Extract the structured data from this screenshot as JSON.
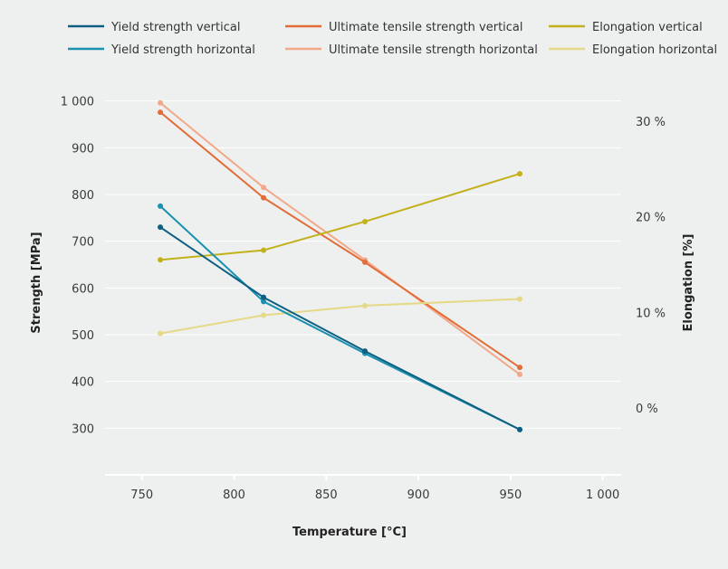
{
  "chart_data": {
    "type": "line",
    "xlabel": "Temperature [°C]",
    "ylabel": "Strength [MPa]",
    "y2label": "Elongation [%]",
    "xlim": [
      730,
      1010
    ],
    "ylim": [
      200,
      1100
    ],
    "y2lim": [
      -7,
      37
    ],
    "x_ticks": [
      750,
      800,
      850,
      900,
      950,
      1000
    ],
    "x_tick_labels": [
      "750",
      "800",
      "850",
      "900",
      "950",
      "1 000"
    ],
    "y_ticks": [
      300,
      400,
      500,
      600,
      700,
      800,
      900,
      1000
    ],
    "y_tick_labels": [
      "300",
      "400",
      "500",
      "600",
      "700",
      "800",
      "900",
      "1 000"
    ],
    "y2_ticks": [
      0,
      10,
      20,
      30
    ],
    "y2_tick_labels": [
      "0 %",
      "10 %",
      "20 %",
      "30 %"
    ],
    "grid": true,
    "legend_position": "top",
    "x": [
      760,
      816,
      871,
      955
    ],
    "series": [
      {
        "name": "Yield strength vertical",
        "axis": "left",
        "color": "#0e5f82",
        "values": [
          730,
          580,
          465,
          297
        ]
      },
      {
        "name": "Ultimate tensile strength vertical",
        "axis": "left",
        "color": "#e36d38",
        "values": [
          976,
          793,
          655,
          430
        ]
      },
      {
        "name": "Elongation vertical",
        "axis": "right",
        "color": "#c2b11a",
        "values": [
          15.5,
          16.5,
          19.5,
          24.5
        ]
      },
      {
        "name": "Yield strength horizontal",
        "axis": "left",
        "color": "#1a91b0",
        "values": [
          775,
          571,
          460,
          297
        ]
      },
      {
        "name": "Ultimate tensile strength horizontal",
        "axis": "left",
        "color": "#f3a88a",
        "values": [
          996,
          815,
          660,
          415
        ]
      },
      {
        "name": "Elongation horizontal",
        "axis": "right",
        "color": "#e5d887",
        "values": [
          7.8,
          9.7,
          10.7,
          11.4
        ]
      }
    ]
  }
}
